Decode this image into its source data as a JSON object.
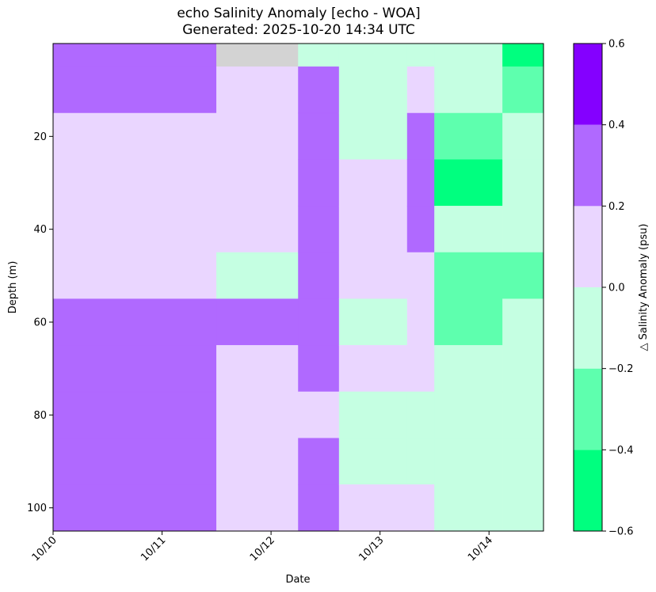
{
  "title_line1": "echo Salinity Anomaly [echo - WOA]",
  "title_line2": "Generated: 2025-10-20 14:34 UTC",
  "chart_data": {
    "type": "heatmap",
    "title": "echo Salinity Anomaly [echo - WOA]",
    "subtitle": "Generated: 2025-10-20 14:34 UTC",
    "xlabel": "Date",
    "ylabel": "Depth (m)",
    "colorbar_label": "△ Salinity Anomaly (psu)",
    "x_ticks": [
      "10/10",
      "10/11",
      "10/12",
      "10/13",
      "10/14"
    ],
    "x_range_days": [
      0,
      4.5
    ],
    "y_ticks": [
      20,
      40,
      60,
      80,
      100
    ],
    "ylim": [
      105,
      0
    ],
    "y_inverted": true,
    "levels": [
      -0.6,
      -0.4,
      -0.2,
      0.0,
      0.2,
      0.4,
      0.6
    ],
    "level_labels": [
      "−0.6",
      "−0.4",
      "−0.2",
      "0.0",
      "0.2",
      "0.4",
      "0.6"
    ],
    "level_colors": [
      "#00ff7f",
      "#5effae",
      "#c5ffe2",
      "#ead6ff",
      "#b069ff",
      "#8400ff"
    ],
    "missing_color": "#d3d3d3",
    "depth_bins": [
      0,
      5,
      15,
      25,
      35,
      45,
      55,
      65,
      75,
      85,
      95,
      105
    ],
    "time_segments": [
      {
        "start": "10/10 00:00",
        "end": "10/11 12:00",
        "classes": [
          4,
          4,
          3,
          3,
          3,
          3,
          4,
          4,
          4,
          4,
          4
        ]
      },
      {
        "start": "10/11 12:00",
        "end": "10/12 06:00",
        "classes": [
          -1,
          3,
          3,
          3,
          3,
          2,
          4,
          3,
          3,
          3,
          3
        ]
      },
      {
        "start": "10/12 06:00",
        "end": "10/12 15:00",
        "classes": [
          2,
          4,
          4,
          4,
          4,
          4,
          4,
          4,
          3,
          4,
          4
        ]
      },
      {
        "start": "10/12 15:00",
        "end": "10/13 06:00",
        "classes": [
          2,
          2,
          2,
          3,
          3,
          3,
          2,
          3,
          2,
          2,
          3
        ]
      },
      {
        "start": "10/13 06:00",
        "end": "10/13 12:00",
        "classes": [
          2,
          3,
          4,
          4,
          4,
          3,
          3,
          3,
          2,
          2,
          3
        ]
      },
      {
        "start": "10/13 12:00",
        "end": "10/14 03:00",
        "classes": [
          2,
          2,
          1,
          0,
          2,
          1,
          1,
          2,
          2,
          2,
          2
        ]
      },
      {
        "start": "10/14 03:00",
        "end": "10/14 12:00",
        "classes": [
          0,
          1,
          2,
          2,
          2,
          1,
          2,
          2,
          2,
          2,
          2
        ]
      }
    ]
  }
}
